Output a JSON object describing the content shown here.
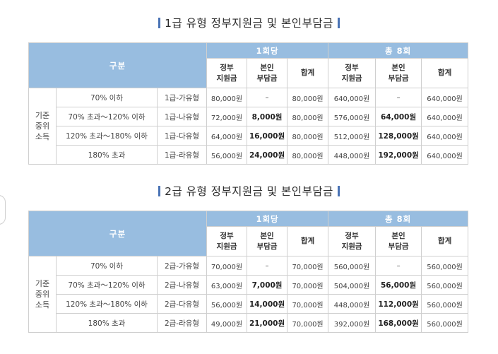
{
  "tables": [
    {
      "title": "1급 유형 정부지원금 및 본인부담금",
      "header": {
        "category": "구분",
        "per_session": "1회당",
        "total": "총 8회",
        "gov_support": "정부 지원금",
        "self_pay": "본인 부담금",
        "sum": "합계"
      },
      "group_label": "기준 중위 소득",
      "rows": [
        {
          "condition": "70% 이하",
          "type": "1급-가유형",
          "gov": "80,000원",
          "self": "–",
          "sum": "80,000원",
          "total_gov": "640,000원",
          "total_self": "–",
          "total_sum": "640,000원"
        },
        {
          "condition": "70% 초과～120% 이하",
          "type": "1급-나유형",
          "gov": "72,000원",
          "self": "8,000원",
          "sum": "80,000원",
          "total_gov": "576,000원",
          "total_self": "64,000원",
          "total_sum": "640,000원"
        },
        {
          "condition": "120% 초과～180% 이하",
          "type": "1급-다유형",
          "gov": "64,000원",
          "self": "16,000원",
          "sum": "80,000원",
          "total_gov": "512,000원",
          "total_self": "128,000원",
          "total_sum": "640,000원"
        },
        {
          "condition": "180% 초과",
          "type": "1급-라유형",
          "gov": "56,000원",
          "self": "24,000원",
          "sum": "80,000원",
          "total_gov": "448,000원",
          "total_self": "192,000원",
          "total_sum": "640,000원"
        }
      ]
    },
    {
      "title": "2급 유형 정부지원금 및 본인부담금",
      "header": {
        "category": "구분",
        "per_session": "1회당",
        "total": "총 8회",
        "gov_support": "정부 지원금",
        "self_pay": "본인 부담금",
        "sum": "합계"
      },
      "group_label": "기준 중위 소득",
      "rows": [
        {
          "condition": "70% 이하",
          "type": "2급-가유형",
          "gov": "70,000원",
          "self": "–",
          "sum": "70,000원",
          "total_gov": "560,000원",
          "total_self": "–",
          "total_sum": "560,000원"
        },
        {
          "condition": "70% 초과～120% 이하",
          "type": "2급-나유형",
          "gov": "63,000원",
          "self": "7,000원",
          "sum": "70,000원",
          "total_gov": "504,000원",
          "total_self": "56,000원",
          "total_sum": "560,000원"
        },
        {
          "condition": "120% 초과～180% 이하",
          "type": "2급-다유형",
          "gov": "56,000원",
          "self": "14,000원",
          "sum": "70,000원",
          "total_gov": "448,000원",
          "total_self": "112,000원",
          "total_sum": "560,000원"
        },
        {
          "condition": "180% 초과",
          "type": "2급-라유형",
          "gov": "49,000원",
          "self": "21,000원",
          "sum": "70,000원",
          "total_gov": "392,000원",
          "total_self": "168,000원",
          "total_sum": "560,000원"
        }
      ]
    }
  ],
  "colors": {
    "header_blue": "#98bde0",
    "title_bar": "#4a73b5",
    "border": "#cfcfcf"
  }
}
